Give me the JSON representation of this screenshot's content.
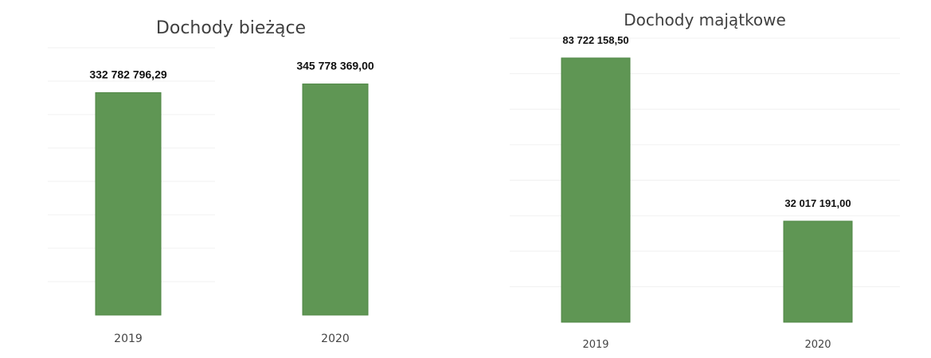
{
  "colors": {
    "bar": "#5f9654",
    "bar_edge": "#4f8745",
    "gridline": "#f0f0f0",
    "text": "#404040"
  },
  "chart_data": [
    {
      "type": "bar",
      "title": "Dochody bieżące",
      "categories": [
        "2019",
        "2020"
      ],
      "values": [
        332782796.29,
        345778369.0
      ],
      "value_labels": [
        "332 782 796,29",
        "345 778 369,00"
      ],
      "xlabel": "",
      "ylabel": "",
      "ylim": [
        0,
        400000000
      ],
      "grid": true,
      "legend": "none"
    },
    {
      "type": "bar",
      "title": "Dochody majątkowe",
      "categories": [
        "2019",
        "2020"
      ],
      "values": [
        83722158.5,
        32017191.0
      ],
      "value_labels": [
        "83 722 158,50",
        "32 017 191,00"
      ],
      "xlabel": "",
      "ylabel": "",
      "ylim": [
        0,
        90000000
      ],
      "grid": true,
      "legend": "none"
    }
  ]
}
